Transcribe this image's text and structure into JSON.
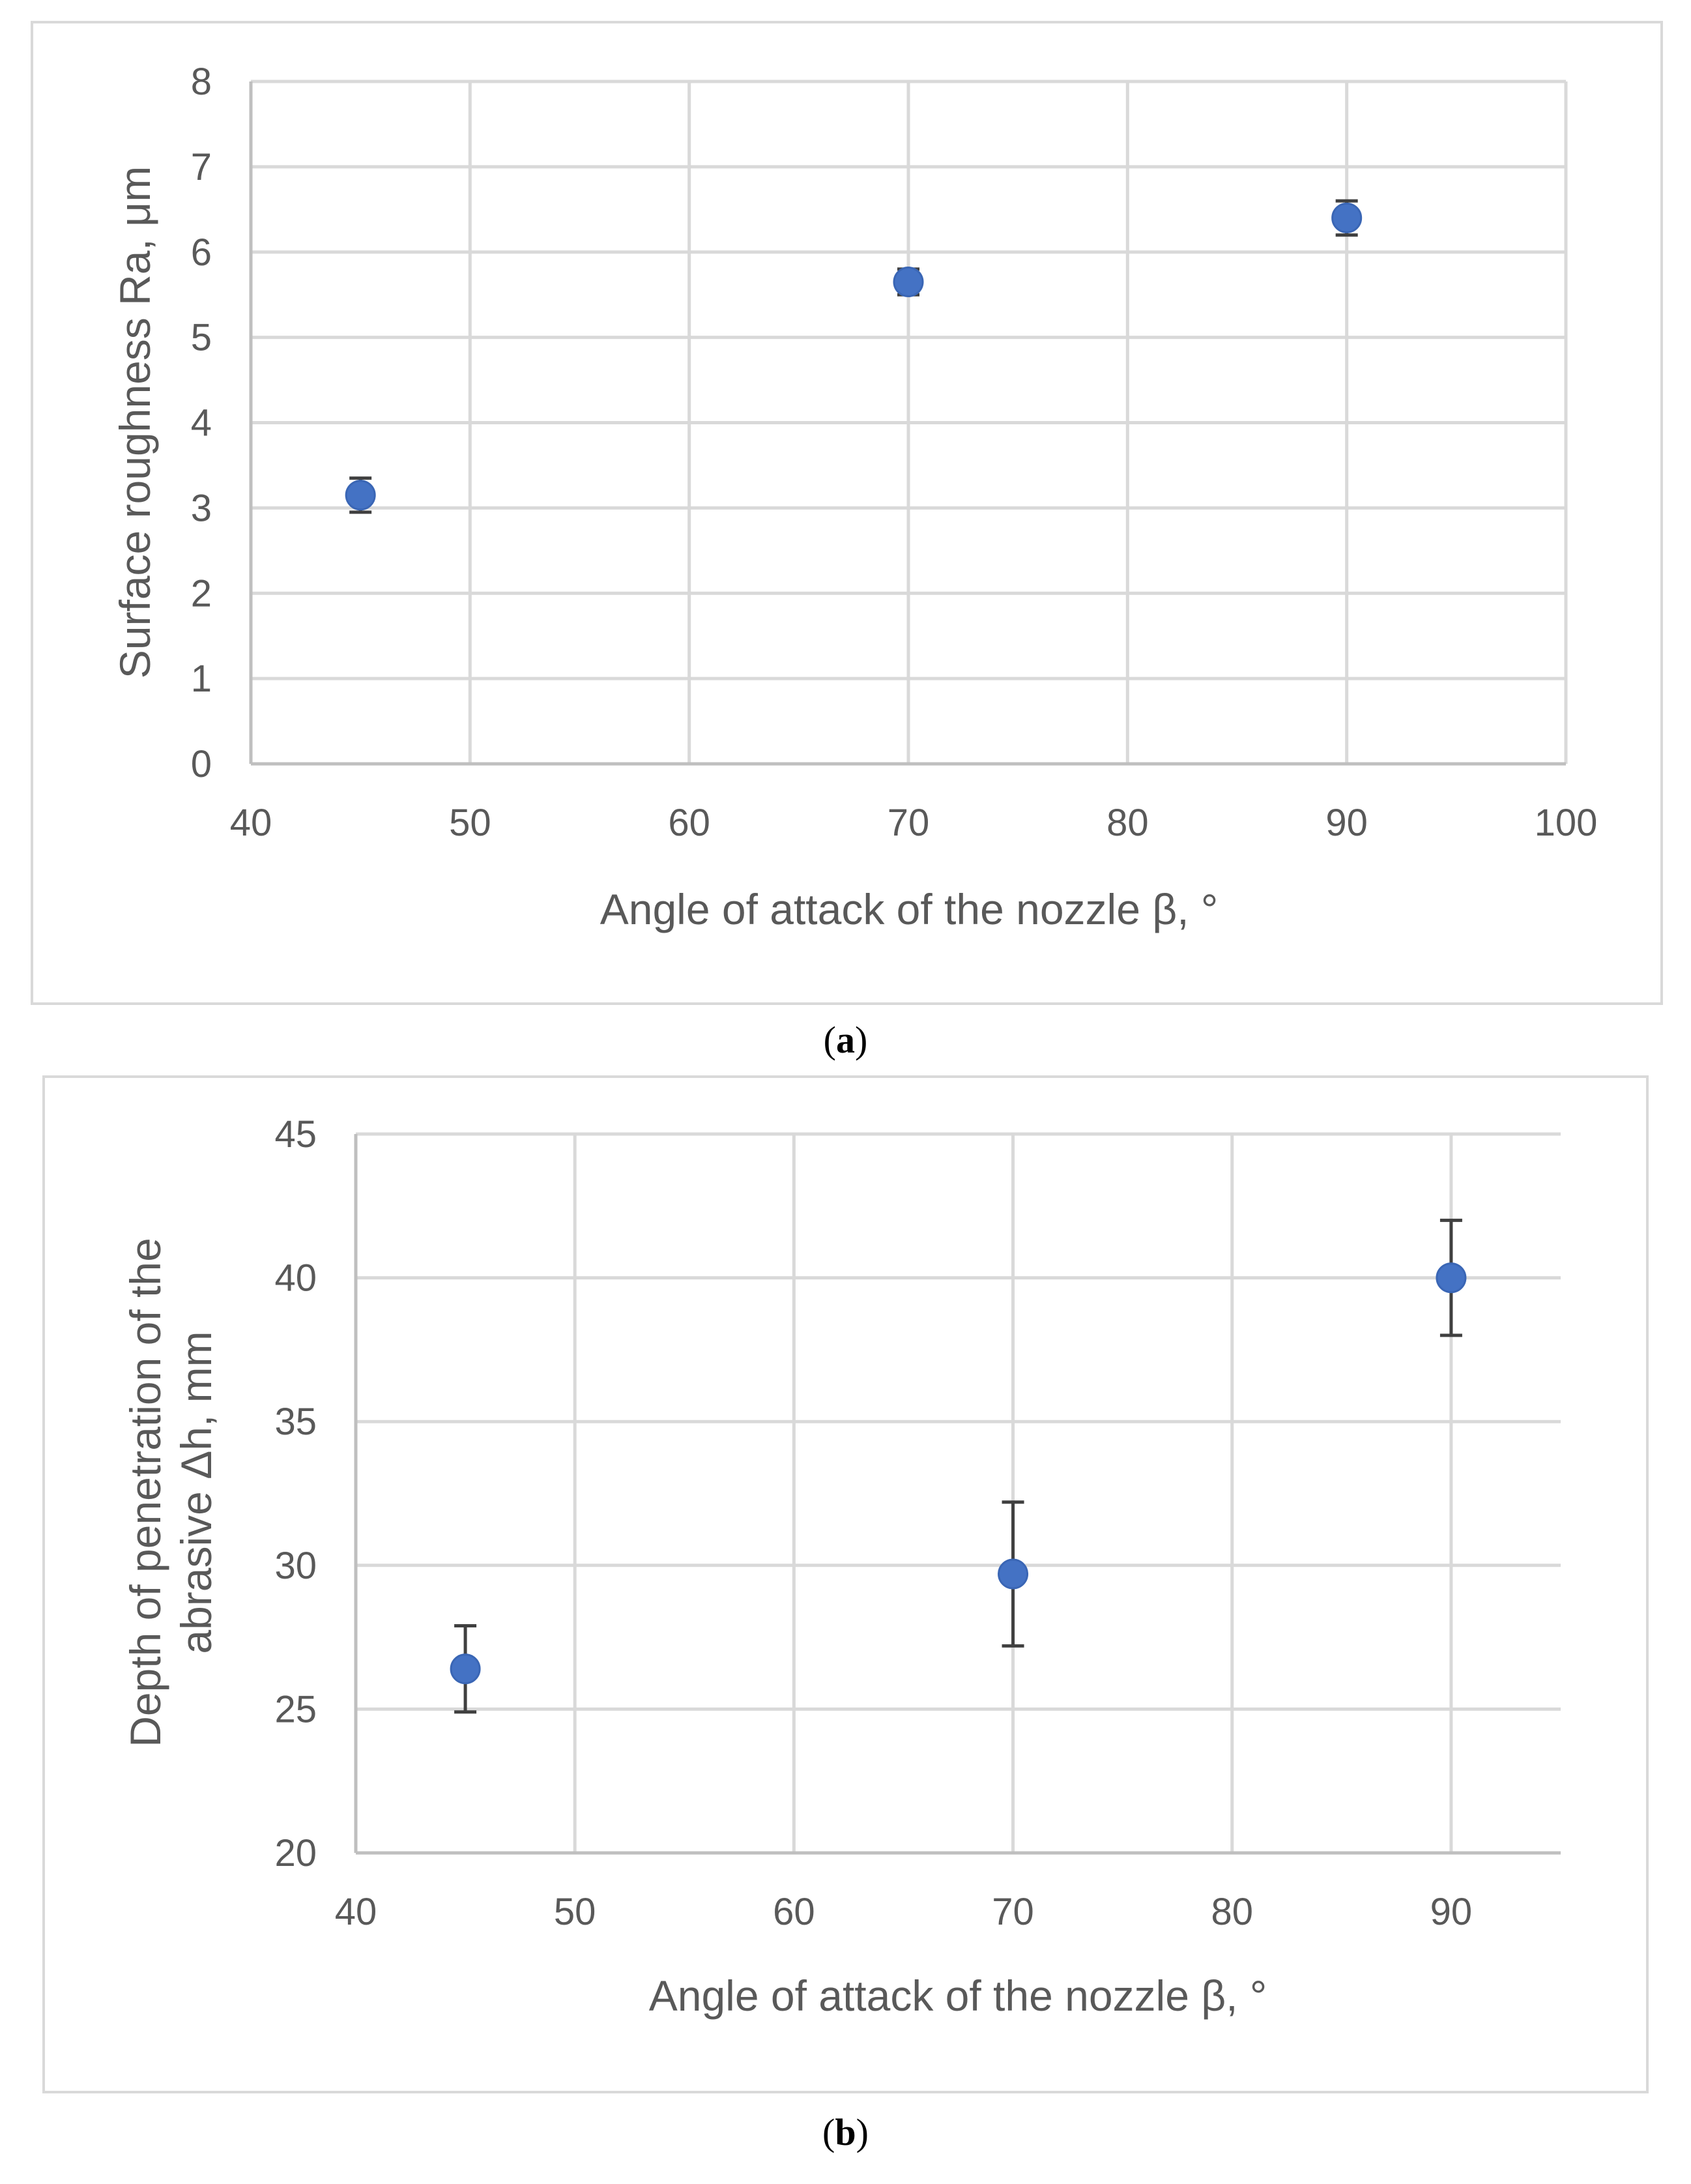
{
  "chart_data": [
    {
      "type": "scatter",
      "panel_label": "a",
      "xlabel": "Angle of attack of the nozzle β, °",
      "ylabel": "Surface roughness Ra, μm",
      "xlim": [
        40,
        100
      ],
      "ylim": [
        0,
        8
      ],
      "xticks": [
        40,
        50,
        60,
        70,
        80,
        90,
        100
      ],
      "yticks": [
        0,
        1,
        2,
        3,
        4,
        5,
        6,
        7,
        8
      ],
      "grid": true,
      "series": [
        {
          "name": "Ra",
          "color": "#4472c4",
          "points": [
            {
              "x": 45,
              "y": 3.15,
              "err": 0.2
            },
            {
              "x": 70,
              "y": 5.65,
              "err": 0.15
            },
            {
              "x": 90,
              "y": 6.4,
              "err": 0.2
            }
          ]
        }
      ]
    },
    {
      "type": "scatter",
      "panel_label": "b",
      "xlabel": "Angle of attack of the nozzle β, °",
      "ylabel_lines": [
        "Depth of penetration of the",
        "abrasive Δh, mm"
      ],
      "xlim": [
        40,
        95
      ],
      "ylim": [
        20,
        45
      ],
      "xticks": [
        40,
        50,
        60,
        70,
        80,
        90
      ],
      "yticks": [
        20,
        25,
        30,
        35,
        40,
        45
      ],
      "grid": true,
      "series": [
        {
          "name": "Δh",
          "color": "#4472c4",
          "points": [
            {
              "x": 45,
              "y": 26.4,
              "err": 1.5
            },
            {
              "x": 70,
              "y": 29.7,
              "err": 2.5
            },
            {
              "x": 90,
              "y": 40,
              "err": 2
            }
          ]
        }
      ]
    }
  ]
}
